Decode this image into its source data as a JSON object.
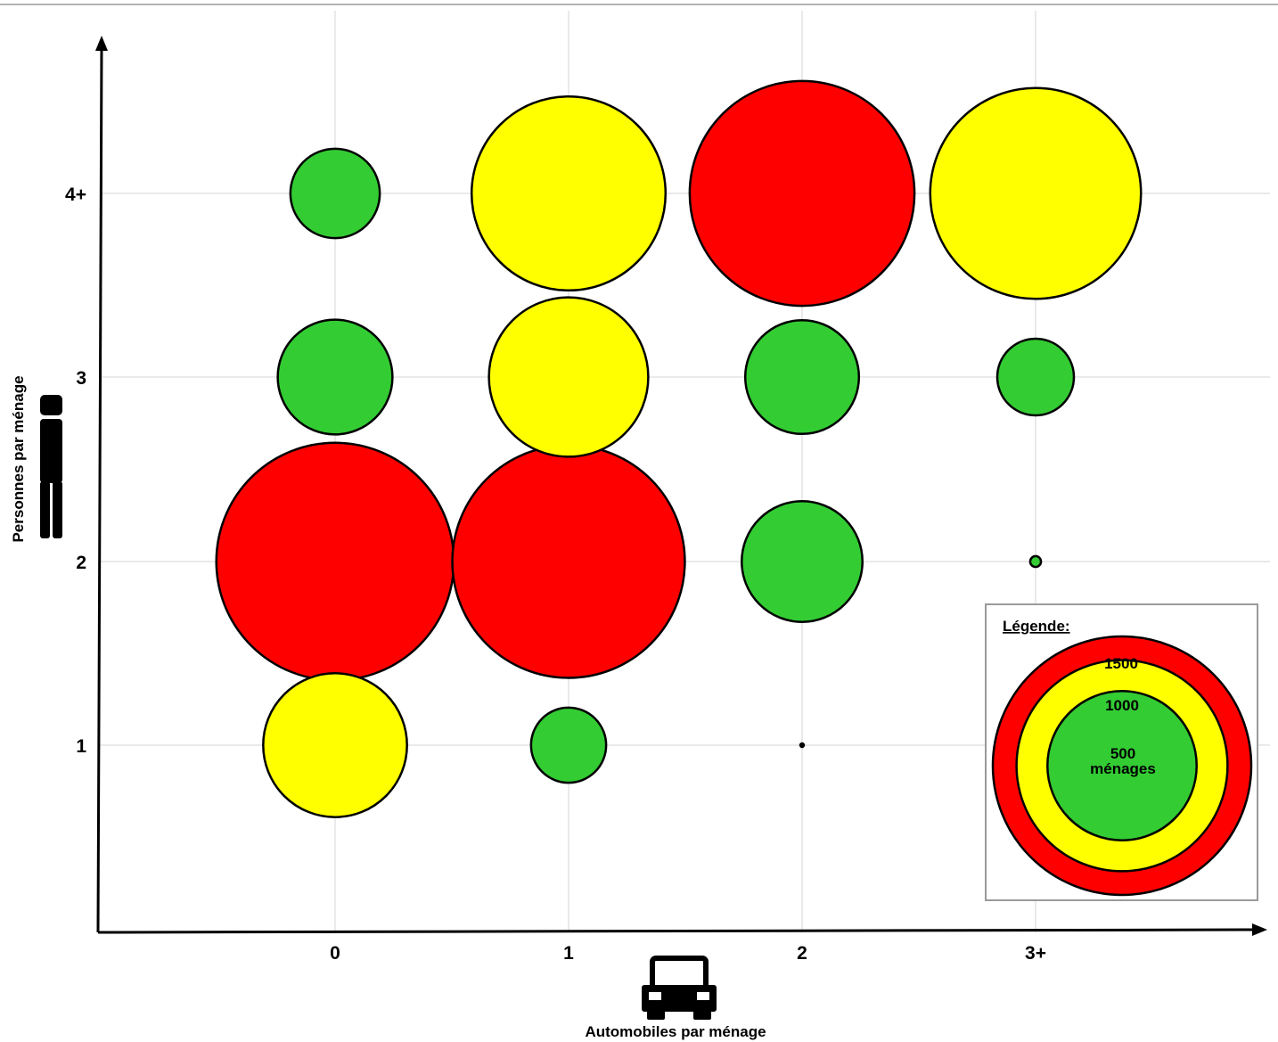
{
  "chart_data": {
    "type": "scatter",
    "subtype": "bubble",
    "title": "",
    "xlabel": "Automobiles par ménage",
    "ylabel": "Personnes  par ménage",
    "x_categories": [
      "0",
      "1",
      "2",
      "3+"
    ],
    "y_categories": [
      "1",
      "2",
      "3",
      "4+"
    ],
    "grid": true,
    "size_unit": "ménages",
    "colors": {
      "large": "#ff0000",
      "medium": "#ffff00",
      "small": "#33cc33"
    },
    "points": [
      {
        "x": "0",
        "y": "1",
        "value": 880,
        "color": "#ffff00"
      },
      {
        "x": "0",
        "y": "2",
        "value": 2400,
        "color": "#ff0000"
      },
      {
        "x": "0",
        "y": "3",
        "value": 560,
        "color": "#33cc33"
      },
      {
        "x": "0",
        "y": "4+",
        "value": 340,
        "color": "#33cc33"
      },
      {
        "x": "1",
        "y": "1",
        "value": 240,
        "color": "#33cc33"
      },
      {
        "x": "1",
        "y": "2",
        "value": 2300,
        "color": "#ff0000"
      },
      {
        "x": "1",
        "y": "3",
        "value": 1080,
        "color": "#ffff00"
      },
      {
        "x": "1",
        "y": "4+",
        "value": 1600,
        "color": "#ffff00"
      },
      {
        "x": "2",
        "y": "1",
        "value": 1,
        "color": "#000000"
      },
      {
        "x": "2",
        "y": "2",
        "value": 620,
        "color": "#33cc33"
      },
      {
        "x": "2",
        "y": "3",
        "value": 550,
        "color": "#33cc33"
      },
      {
        "x": "2",
        "y": "4+",
        "value": 2150,
        "color": "#ff0000"
      },
      {
        "x": "3+",
        "y": "2",
        "value": 5,
        "color": "#33cc33"
      },
      {
        "x": "3+",
        "y": "3",
        "value": 250,
        "color": "#33cc33"
      },
      {
        "x": "3+",
        "y": "4+",
        "value": 1890,
        "color": "#ffff00"
      }
    ],
    "legend": {
      "title": "Légende:",
      "position": "bottom-right",
      "entries": [
        {
          "value": 1500,
          "label": "1500",
          "color": "#ff0000"
        },
        {
          "value": 1000,
          "label": "1000",
          "color": "#ffff00"
        },
        {
          "value": 500,
          "label": "500",
          "unit_label": "ménages",
          "color": "#33cc33"
        }
      ]
    }
  },
  "icons": {
    "y_axis": "person-icon",
    "x_axis": "car-icon"
  }
}
